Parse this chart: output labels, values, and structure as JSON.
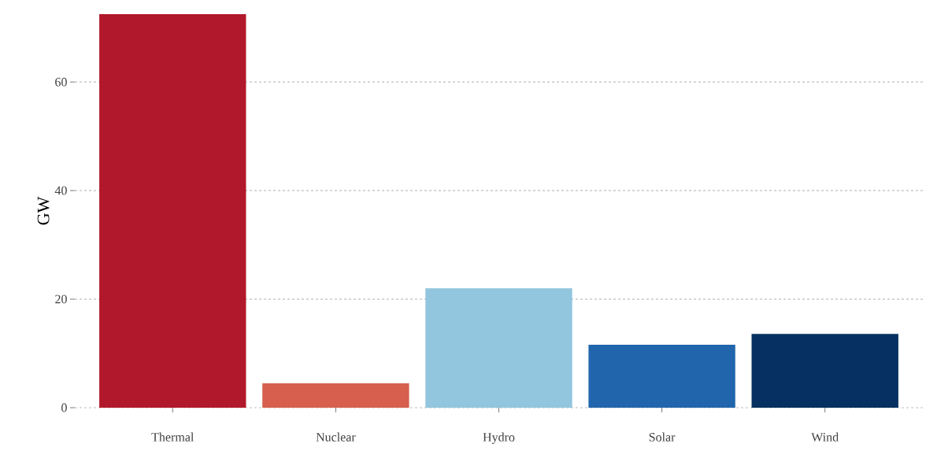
{
  "chart_data": {
    "type": "bar",
    "ylabel": "GW",
    "categories": [
      "Thermal",
      "Nuclear",
      "Hydro",
      "Solar",
      "Wind"
    ],
    "values": [
      72.5,
      4.5,
      22.0,
      11.6,
      13.6
    ],
    "colors": [
      "#b2182b",
      "#d6604d",
      "#92c5de",
      "#2166ac",
      "#053061"
    ],
    "ylim": [
      0,
      72.5
    ],
    "yticks": [
      0,
      20,
      40,
      60
    ],
    "grid": "y"
  }
}
